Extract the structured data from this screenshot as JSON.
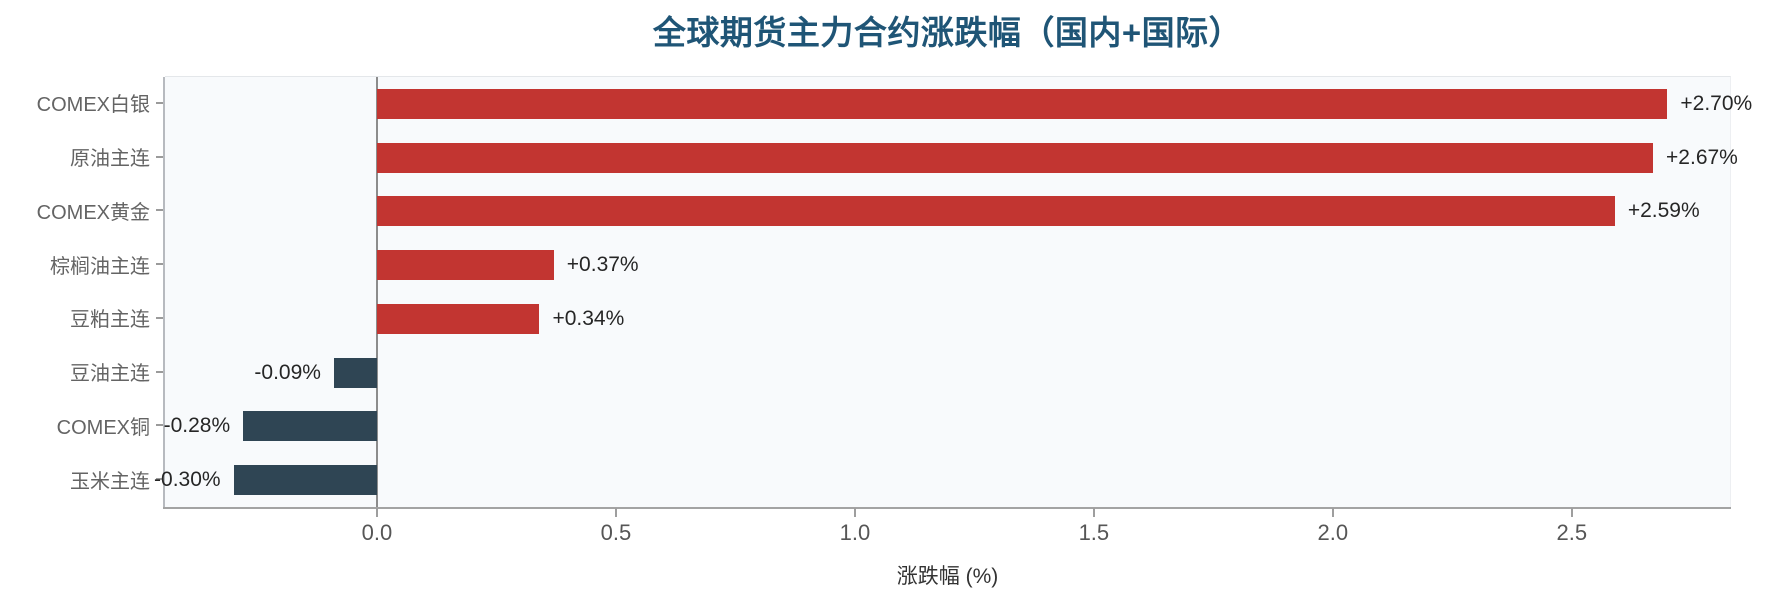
{
  "title": "全球期货主力合约涨跌幅（国内+国际）",
  "chart_data": {
    "type": "bar",
    "orientation": "horizontal",
    "title": "全球期货主力合约涨跌幅（国内+国际）",
    "xlabel": "涨跌幅 (%)",
    "ylabel": "",
    "categories": [
      "COMEX白银",
      "原油主连",
      "COMEX黄金",
      "棕榈油主连",
      "豆粕主连",
      "豆油主连",
      "COMEX铜",
      "玉米主连"
    ],
    "values": [
      2.7,
      2.67,
      2.59,
      0.37,
      0.34,
      -0.09,
      -0.28,
      -0.3
    ],
    "bar_labels": [
      "+2.70%",
      "+2.67%",
      "+2.59%",
      "+0.37%",
      "+0.34%",
      "-0.09%",
      "-0.28%",
      "-0.30%"
    ],
    "x_ticks": [
      {
        "value": 0.0,
        "label": "0.0"
      },
      {
        "value": 0.5,
        "label": "0.5"
      },
      {
        "value": 1.0,
        "label": "1.0"
      },
      {
        "value": 1.5,
        "label": "1.5"
      },
      {
        "value": 2.0,
        "label": "2.0"
      },
      {
        "value": 2.5,
        "label": "2.5"
      }
    ],
    "xlim": [
      -0.4435,
      2.831
    ],
    "grid": false,
    "legend": "none",
    "zero_line": true,
    "colors": {
      "positive_bar": "#c23531",
      "negative_bar": "#2f4554",
      "title_text": "#1f5576",
      "plot_background": "#f8fafc",
      "zero_line": "#8c8c8c",
      "axis_line": "#a3a3a3",
      "tick_text": "#565656",
      "value_text": "#262626",
      "category_text": "#646464"
    }
  }
}
